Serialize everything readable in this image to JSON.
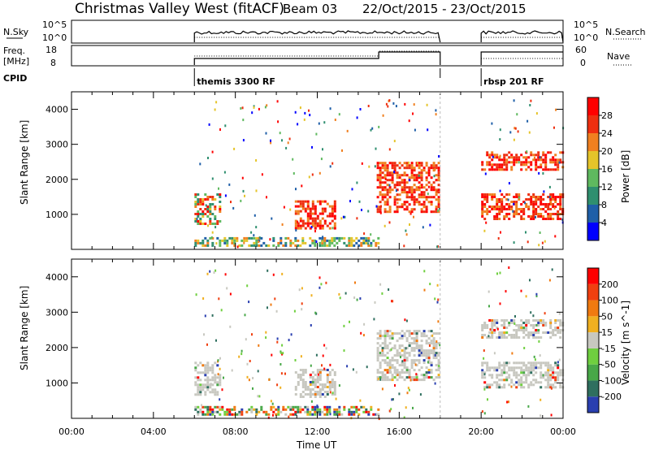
{
  "header": {
    "station": "Christmas Valley West (fitACF)",
    "beam": "Beam 03",
    "date_range": "22/Oct/2015 - 23/Oct/2015"
  },
  "top_panels": {
    "nsky_label": "N.Sky",
    "nsky_ticks": [
      "10^5",
      "10^0"
    ],
    "nsearch_label": "N.Search",
    "nsearch_ticks": [
      "10^5",
      "10^0"
    ],
    "freq_label_1": "Freq.",
    "freq_label_2": "[MHz]",
    "freq_ticks": [
      "18",
      "8"
    ],
    "nave_label": "Nave",
    "nave_ticks": [
      "60",
      "0"
    ],
    "cpid_label": "CPID",
    "cpid_segments": [
      {
        "name": "themis 3300 RF",
        "start_hour": 6.0,
        "end_hour": 18.0
      },
      {
        "name": "rbsp 201 RF",
        "start_hour": 20.0,
        "end_hour": 24.0
      }
    ]
  },
  "chart_data": [
    {
      "type": "heatmap",
      "panel": "power",
      "xlabel": "Time UT",
      "ylabel": "Slant Range [km]",
      "xlim": [
        0,
        24
      ],
      "ylim": [
        0,
        4500
      ],
      "x_ticks": [
        "00:00",
        "04:00",
        "08:00",
        "12:00",
        "16:00",
        "20:00",
        "00:00"
      ],
      "y_ticks": [
        1000,
        2000,
        3000,
        4000
      ],
      "colorbar_label": "Power [dB]",
      "colorbar_ticks": [
        "4",
        "8",
        "12",
        "16",
        "20",
        "24",
        "28"
      ],
      "colorbar_colors": [
        "#0000ff",
        "#1f5fa8",
        "#2f8f6f",
        "#5fb95f",
        "#e5c42a",
        "#f08020",
        "#ee2f10",
        "#ff0000"
      ],
      "regions": [
        {
          "t0": 6.0,
          "t1": 7.3,
          "r0": 700,
          "r1": 1600,
          "level": "mixed-high"
        },
        {
          "t0": 10.9,
          "t1": 12.9,
          "r0": 600,
          "r1": 1400,
          "level": "high"
        },
        {
          "t0": 14.9,
          "t1": 17.9,
          "r0": 1100,
          "r1": 2500,
          "level": "high"
        },
        {
          "t0": 20.0,
          "t1": 24.0,
          "r0": 850,
          "r1": 1600,
          "level": "high"
        },
        {
          "t0": 20.0,
          "t1": 24.0,
          "r0": 2300,
          "r1": 2800,
          "level": "high"
        },
        {
          "t0": 6.0,
          "t1": 15.0,
          "r0": 100,
          "r1": 350,
          "level": "low"
        }
      ]
    },
    {
      "type": "heatmap",
      "panel": "velocity",
      "xlabel": "Time UT",
      "ylabel": "Slant Range [km]",
      "xlim": [
        0,
        24
      ],
      "ylim": [
        0,
        4500
      ],
      "x_ticks": [
        "00:00",
        "04:00",
        "08:00",
        "12:00",
        "16:00",
        "20:00",
        "00:00"
      ],
      "y_ticks": [
        1000,
        2000,
        3000,
        4000
      ],
      "colorbar_label": "Velocity [m s^-1]",
      "colorbar_ticks": [
        "200",
        "100",
        "50",
        "15",
        "-15",
        "-50",
        "-100",
        "-200"
      ],
      "colorbar_colors": [
        "#2a3fb0",
        "#2f6f5f",
        "#48a848",
        "#6fcf3f",
        "#c8c8c0",
        "#f0b020",
        "#f07a10",
        "#f04010",
        "#ff0000"
      ],
      "regions": [
        {
          "t0": 6.0,
          "t1": 7.3,
          "r0": 700,
          "r1": 1600,
          "level": "ground"
        },
        {
          "t0": 10.9,
          "t1": 12.9,
          "r0": 600,
          "r1": 1400,
          "level": "ground"
        },
        {
          "t0": 14.9,
          "t1": 17.9,
          "r0": 1100,
          "r1": 2500,
          "level": "ground"
        },
        {
          "t0": 20.0,
          "t1": 24.0,
          "r0": 850,
          "r1": 1600,
          "level": "ground"
        },
        {
          "t0": 20.0,
          "t1": 24.0,
          "r0": 2300,
          "r1": 2800,
          "level": "ground"
        },
        {
          "t0": 6.0,
          "t1": 15.0,
          "r0": 100,
          "r1": 350,
          "level": "mixed"
        }
      ]
    }
  ]
}
